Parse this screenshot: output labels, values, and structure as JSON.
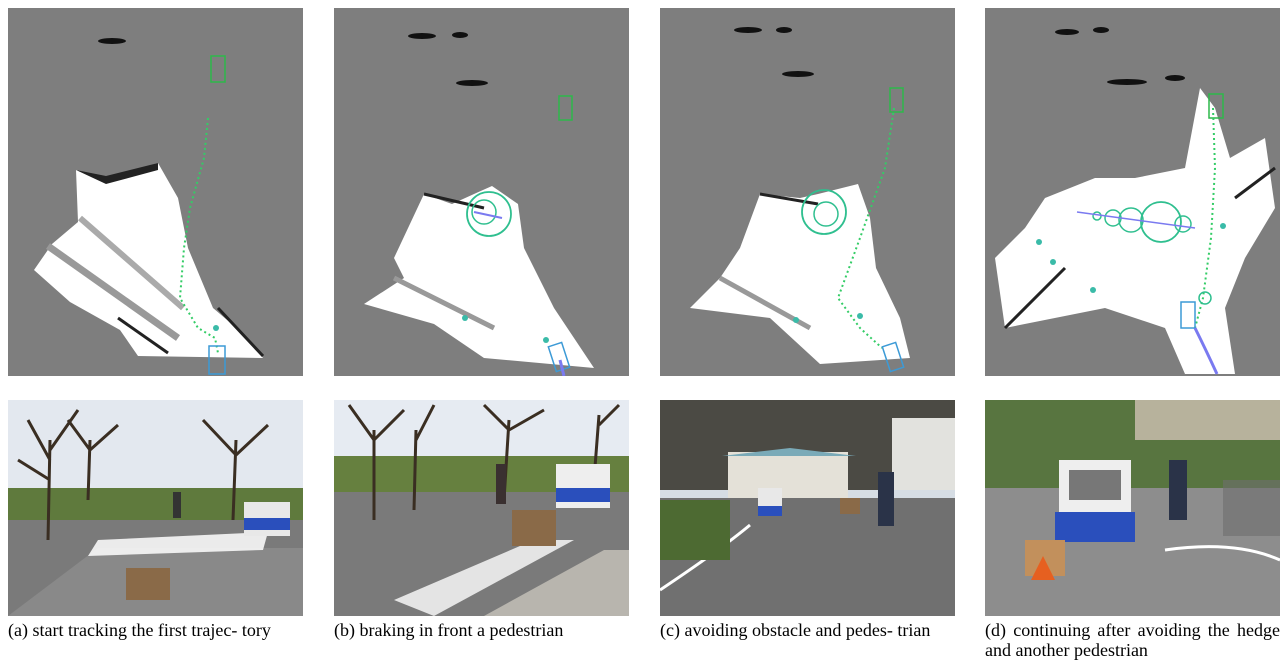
{
  "figure": {
    "panels": [
      {
        "id": "a",
        "caption": "(a) start tracking the first trajec- tory"
      },
      {
        "id": "b",
        "caption": "(b) braking in front a pedestrian"
      },
      {
        "id": "c",
        "caption": "(c) avoiding obstacle and pedes- trian"
      },
      {
        "id": "d",
        "caption": "(d) continuing after avoiding the hedge and another pedestrian"
      }
    ]
  }
}
